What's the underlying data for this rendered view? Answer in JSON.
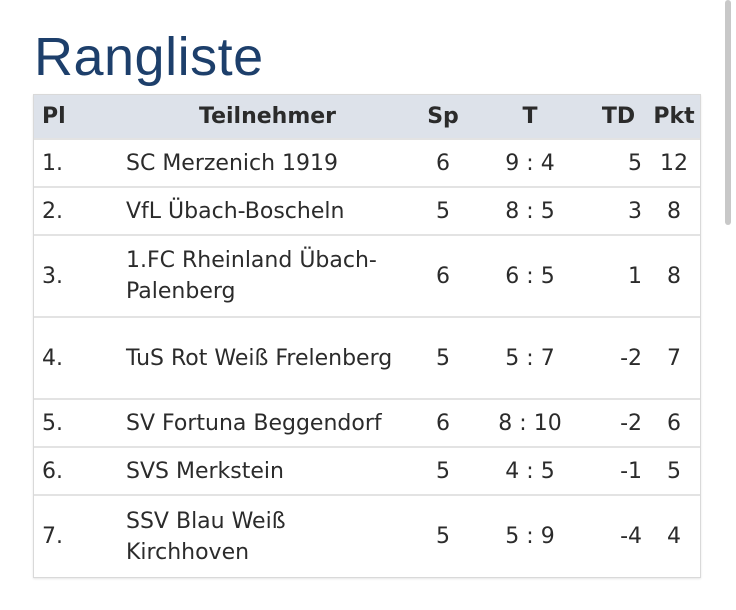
{
  "page": {
    "title": "Rangliste"
  },
  "table": {
    "columns": {
      "place": "Pl",
      "participant": "Teilnehmer",
      "games": "Sp",
      "goals": "T",
      "goal_diff": "TD",
      "points": "Pkt"
    },
    "rows": [
      {
        "place": "1.",
        "team": "SC Merzenich 1919",
        "games": "6",
        "goals": "9 : 4",
        "goal_diff": "5",
        "points": "12"
      },
      {
        "place": "2.",
        "team": "VfL Übach-Boscheln",
        "games": "5",
        "goals": "8 : 5",
        "goal_diff": "3",
        "points": "8"
      },
      {
        "place": "3.",
        "team": "1.FC Rheinland Übach-Palenberg",
        "games": "6",
        "goals": "6 : 5",
        "goal_diff": "1",
        "points": "8"
      },
      {
        "place": "4.",
        "team": "TuS Rot Weiß Frelenberg",
        "games": "5",
        "goals": "5 : 7",
        "goal_diff": "-2",
        "points": "7"
      },
      {
        "place": "5.",
        "team": "SV Fortuna Beggendorf",
        "games": "6",
        "goals": "8 : 10",
        "goal_diff": "-2",
        "points": "6"
      },
      {
        "place": "6.",
        "team": "SVS Merkstein",
        "games": "5",
        "goals": "4 : 5",
        "goal_diff": "-1",
        "points": "5"
      },
      {
        "place": "7.",
        "team": "SSV Blau Weiß Kirchhoven",
        "games": "5",
        "goals": "5 : 9",
        "goal_diff": "-4",
        "points": "4"
      }
    ]
  }
}
